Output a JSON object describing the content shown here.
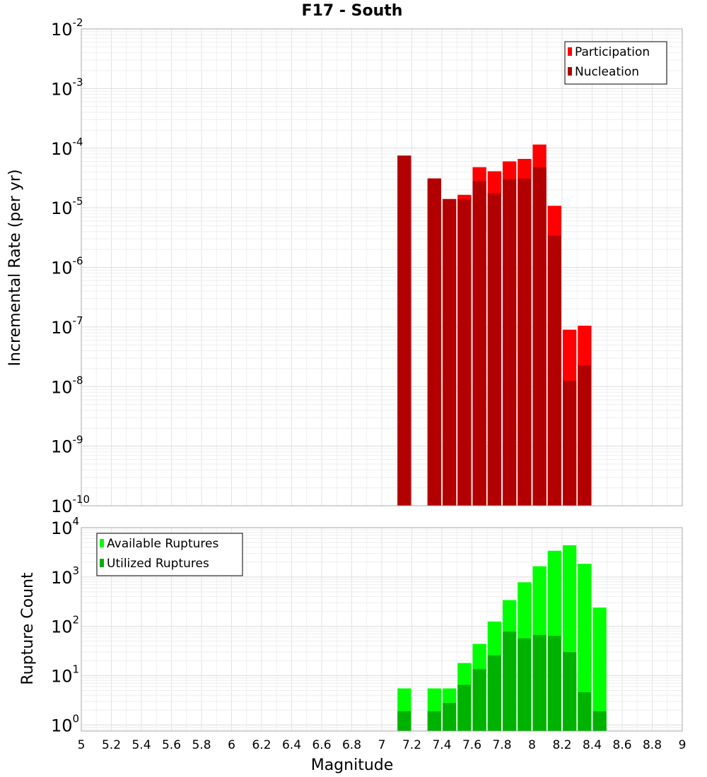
{
  "chart_data": [
    {
      "type": "bar",
      "title": "F17 - South",
      "xlabel": "",
      "ylabel": "Incremental Rate (per yr)",
      "yscale": "log",
      "ylim": [
        1e-10,
        0.01
      ],
      "xlim": [
        5,
        9
      ],
      "legend_position": "top-right",
      "series": [
        {
          "name": "Participation",
          "color": "#ff0000",
          "points": [
            {
              "x": 7.15,
              "y": 7.5e-05
            },
            {
              "x": 7.35,
              "y": 3.1e-05
            },
            {
              "x": 7.45,
              "y": 1.4e-05
            },
            {
              "x": 7.55,
              "y": 1.65e-05
            },
            {
              "x": 7.65,
              "y": 4.8e-05
            },
            {
              "x": 7.75,
              "y": 4.1e-05
            },
            {
              "x": 7.85,
              "y": 6e-05
            },
            {
              "x": 7.95,
              "y": 6.6e-05
            },
            {
              "x": 8.05,
              "y": 0.000115
            },
            {
              "x": 8.15,
              "y": 1.08e-05
            },
            {
              "x": 8.25,
              "y": 9e-08
            },
            {
              "x": 8.35,
              "y": 1.05e-07
            }
          ]
        },
        {
          "name": "Nucleation",
          "color": "#b20000",
          "points": [
            {
              "x": 7.15,
              "y": 7.5e-05
            },
            {
              "x": 7.35,
              "y": 3.1e-05
            },
            {
              "x": 7.45,
              "y": 1.4e-05
            },
            {
              "x": 7.55,
              "y": 1.4e-05
            },
            {
              "x": 7.65,
              "y": 2.8e-05
            },
            {
              "x": 7.75,
              "y": 1.75e-05
            },
            {
              "x": 7.85,
              "y": 3e-05
            },
            {
              "x": 7.95,
              "y": 3.1e-05
            },
            {
              "x": 8.05,
              "y": 4.8e-05
            },
            {
              "x": 8.15,
              "y": 3.4e-06
            },
            {
              "x": 8.25,
              "y": 1.25e-08
            },
            {
              "x": 8.35,
              "y": 2.3e-08
            }
          ]
        }
      ]
    },
    {
      "type": "bar",
      "title": "",
      "xlabel": "Magnitude",
      "ylabel": "Rupture Count",
      "yscale": "log",
      "ylim": [
        0.75,
        10000.0
      ],
      "xlim": [
        5,
        9
      ],
      "legend_position": "top-left",
      "x_ticks": [
        "5",
        "5.2",
        "5.4",
        "5.6",
        "5.8",
        "6",
        "6.2",
        "6.4",
        "6.6",
        "6.8",
        "7",
        "7.2",
        "7.4",
        "7.6",
        "7.8",
        "8",
        "8.2",
        "8.4",
        "8.6",
        "8.8",
        "9"
      ],
      "series": [
        {
          "name": "Available Ruptures",
          "color": "#00ff00",
          "points": [
            {
              "x": 7.15,
              "y": 5.5
            },
            {
              "x": 7.35,
              "y": 5.5
            },
            {
              "x": 7.45,
              "y": 5.5
            },
            {
              "x": 7.55,
              "y": 18
            },
            {
              "x": 7.65,
              "y": 44
            },
            {
              "x": 7.75,
              "y": 125
            },
            {
              "x": 7.85,
              "y": 340
            },
            {
              "x": 7.95,
              "y": 780
            },
            {
              "x": 8.05,
              "y": 1650
            },
            {
              "x": 8.15,
              "y": 3400
            },
            {
              "x": 8.25,
              "y": 4400
            },
            {
              "x": 8.35,
              "y": 1850
            },
            {
              "x": 8.45,
              "y": 240
            }
          ]
        },
        {
          "name": "Utilized Ruptures",
          "color": "#00b200",
          "points": [
            {
              "x": 7.15,
              "y": 1.9
            },
            {
              "x": 7.35,
              "y": 1.9
            },
            {
              "x": 7.45,
              "y": 2.8
            },
            {
              "x": 7.55,
              "y": 6.5
            },
            {
              "x": 7.65,
              "y": 13.5
            },
            {
              "x": 7.75,
              "y": 26
            },
            {
              "x": 7.85,
              "y": 78
            },
            {
              "x": 7.95,
              "y": 57
            },
            {
              "x": 8.05,
              "y": 67
            },
            {
              "x": 8.15,
              "y": 64
            },
            {
              "x": 8.25,
              "y": 30
            },
            {
              "x": 8.35,
              "y": 4.6
            },
            {
              "x": 8.45,
              "y": 1.9
            }
          ]
        }
      ]
    }
  ],
  "top_y_ticks": [
    {
      "base": "10",
      "exp": "-2"
    },
    {
      "base": "10",
      "exp": "-3"
    },
    {
      "base": "10",
      "exp": "-4"
    },
    {
      "base": "10",
      "exp": "-5"
    },
    {
      "base": "10",
      "exp": "-6"
    },
    {
      "base": "10",
      "exp": "-7"
    },
    {
      "base": "10",
      "exp": "-8"
    },
    {
      "base": "10",
      "exp": "-9"
    },
    {
      "base": "10",
      "exp": "-10"
    }
  ],
  "bottom_y_ticks": [
    {
      "base": "10",
      "exp": "4"
    },
    {
      "base": "10",
      "exp": "3"
    },
    {
      "base": "10",
      "exp": "2"
    },
    {
      "base": "10",
      "exp": "1"
    },
    {
      "base": "10",
      "exp": "0"
    }
  ]
}
